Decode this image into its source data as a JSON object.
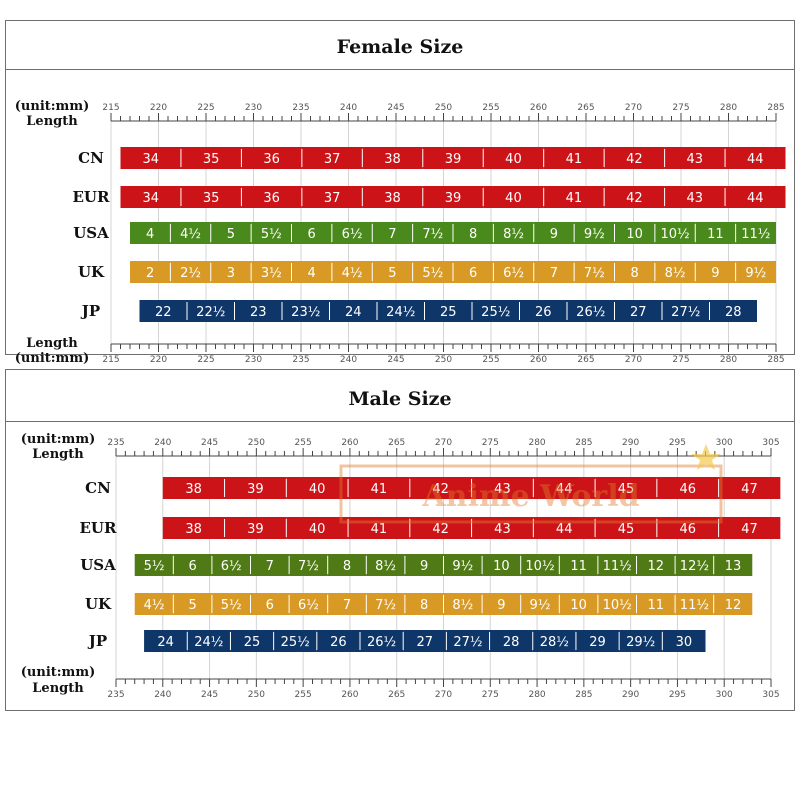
{
  "chart_data": [
    {
      "type": "table",
      "title": "Female Size",
      "axis_top_label": [
        "(unit:mm)",
        "Length"
      ],
      "axis_bottom_label": [
        "Length",
        "(unit:mm)"
      ],
      "xlim": [
        215,
        285
      ],
      "tick_step": 5,
      "series": [
        {
          "name": "CN",
          "color": "#cc1317",
          "values": [
            "34",
            "35",
            "36",
            "37",
            "38",
            "39",
            "40",
            "41",
            "42",
            "43",
            "44"
          ]
        },
        {
          "name": "EUR",
          "color": "#cc1317",
          "values": [
            "34",
            "35",
            "36",
            "37",
            "38",
            "39",
            "40",
            "41",
            "42",
            "43",
            "44"
          ]
        },
        {
          "name": "USA",
          "color": "#4a8a1c",
          "values": [
            "4",
            "4½",
            "5",
            "5½",
            "6",
            "6½",
            "7",
            "7½",
            "8",
            "8½",
            "9",
            "9½",
            "10",
            "10½",
            "11",
            "11½"
          ]
        },
        {
          "name": "UK",
          "color": "#d99a25",
          "values": [
            "2",
            "2½",
            "3",
            "3½",
            "4",
            "4½",
            "5",
            "5½",
            "6",
            "6½",
            "7",
            "7½",
            "8",
            "8½",
            "9",
            "9½"
          ]
        },
        {
          "name": "JP",
          "color": "#0e3668",
          "values": [
            "22",
            "22½",
            "23",
            "23½",
            "24",
            "24½",
            "25",
            "25½",
            "26",
            "26½",
            "27",
            "27½",
            "28"
          ]
        }
      ],
      "ranges_mm": {
        "CN": [
          216,
          286
        ],
        "EUR": [
          216,
          286
        ],
        "USA": [
          217,
          285
        ],
        "UK": [
          217,
          285
        ],
        "JP": [
          218,
          283
        ]
      }
    },
    {
      "type": "table",
      "title": "Male Size",
      "axis_top_label": [
        "(unit:mm)",
        "Length"
      ],
      "axis_bottom_label": [
        "(unit:mm)",
        "Length"
      ],
      "xlim": [
        235,
        305
      ],
      "tick_step": 5,
      "series": [
        {
          "name": "CN",
          "color": "#cc1317",
          "values": [
            "38",
            "39",
            "40",
            "41",
            "42",
            "43",
            "44",
            "45",
            "46",
            "47"
          ]
        },
        {
          "name": "EUR",
          "color": "#cc1317",
          "values": [
            "38",
            "39",
            "40",
            "41",
            "42",
            "43",
            "44",
            "45",
            "46",
            "47"
          ]
        },
        {
          "name": "USA",
          "color": "#4f7a16",
          "values": [
            "5½",
            "6",
            "6½",
            "7",
            "7½",
            "8",
            "8½",
            "9",
            "9½",
            "10",
            "10½",
            "11",
            "11½",
            "12",
            "12½",
            "13"
          ]
        },
        {
          "name": "UK",
          "color": "#d99a25",
          "values": [
            "4½",
            "5",
            "5½",
            "6",
            "6½",
            "7",
            "7½",
            "8",
            "8½",
            "9",
            "9½",
            "10",
            "10½",
            "11",
            "11½",
            "12"
          ]
        },
        {
          "name": "JP",
          "color": "#0e3668",
          "values": [
            "24",
            "24½",
            "25",
            "25½",
            "26",
            "26½",
            "27",
            "27½",
            "28",
            "28½",
            "29",
            "29½",
            "30"
          ]
        }
      ],
      "ranges_mm": {
        "CN": [
          240,
          306
        ],
        "EUR": [
          240,
          306
        ],
        "USA": [
          237,
          303
        ],
        "UK": [
          237,
          303
        ],
        "JP": [
          238,
          298
        ]
      }
    }
  ],
  "watermark": {
    "text": "Anime World",
    "color": "#e07c2e"
  }
}
